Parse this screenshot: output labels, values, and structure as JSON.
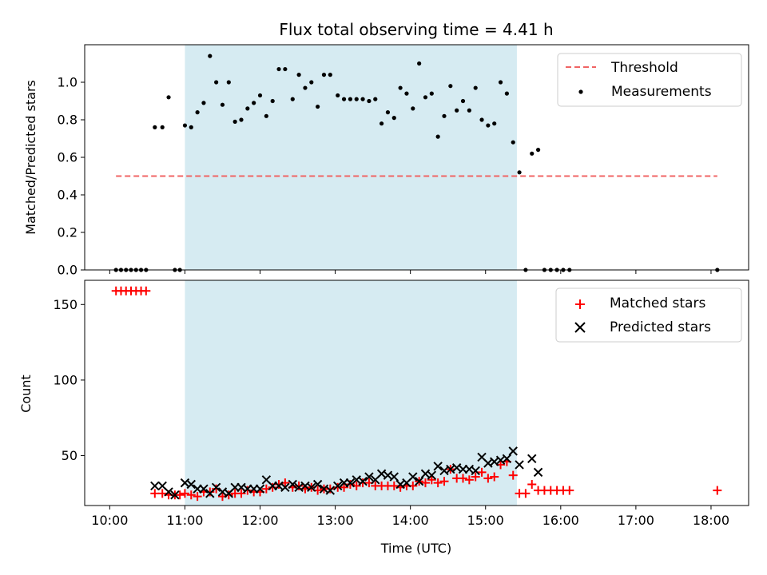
{
  "chart_data": [
    {
      "type": "scatter",
      "title": "Flux total observing time = 4.41 h",
      "ylabel": "Matched/Predicted stars",
      "xlabel": "",
      "ylim": [
        0,
        1.2
      ],
      "xlim": [
        "09:40",
        "18:30"
      ],
      "yticks": [
        "0.0",
        "0.2",
        "0.4",
        "0.6",
        "0.8",
        "1.0"
      ],
      "observing_window": [
        "11:00",
        "15:25"
      ],
      "window_color": "#add8e6",
      "legend_position": "upper right",
      "threshold": {
        "name": "Threshold",
        "value": 0.5,
        "x_range": [
          "10:05",
          "18:05"
        ],
        "color": "#f06464",
        "style": "dashed"
      },
      "series": [
        {
          "name": "Measurements",
          "color": "#000000",
          "marker": "dot",
          "points": [
            [
              "10:05",
              0.0
            ],
            [
              "10:09",
              0.0
            ],
            [
              "10:13",
              0.0
            ],
            [
              "10:17",
              0.0
            ],
            [
              "10:21",
              0.0
            ],
            [
              "10:25",
              0.0
            ],
            [
              "10:29",
              0.0
            ],
            [
              "10:36",
              0.76
            ],
            [
              "10:42",
              0.76
            ],
            [
              "10:47",
              0.92
            ],
            [
              "10:52",
              0.0
            ],
            [
              "10:56",
              0.0
            ],
            [
              "11:00",
              0.77
            ],
            [
              "11:05",
              0.76
            ],
            [
              "11:10",
              0.84
            ],
            [
              "11:15",
              0.89
            ],
            [
              "11:20",
              1.14
            ],
            [
              "11:25",
              1.0
            ],
            [
              "11:30",
              0.88
            ],
            [
              "11:35",
              1.0
            ],
            [
              "11:40",
              0.79
            ],
            [
              "11:45",
              0.8
            ],
            [
              "11:50",
              0.86
            ],
            [
              "11:55",
              0.89
            ],
            [
              "12:00",
              0.93
            ],
            [
              "12:05",
              0.82
            ],
            [
              "12:10",
              0.9
            ],
            [
              "12:15",
              1.07
            ],
            [
              "12:20",
              1.07
            ],
            [
              "12:26",
              0.91
            ],
            [
              "12:31",
              1.04
            ],
            [
              "12:36",
              0.97
            ],
            [
              "12:41",
              1.0
            ],
            [
              "12:46",
              0.87
            ],
            [
              "12:51",
              1.04
            ],
            [
              "12:56",
              1.04
            ],
            [
              "13:02",
              0.93
            ],
            [
              "13:07",
              0.91
            ],
            [
              "13:12",
              0.91
            ],
            [
              "13:17",
              0.91
            ],
            [
              "13:22",
              0.91
            ],
            [
              "13:27",
              0.9
            ],
            [
              "13:32",
              0.91
            ],
            [
              "13:37",
              0.78
            ],
            [
              "13:42",
              0.84
            ],
            [
              "13:47",
              0.81
            ],
            [
              "13:52",
              0.97
            ],
            [
              "13:57",
              0.94
            ],
            [
              "14:02",
              0.86
            ],
            [
              "14:07",
              1.1
            ],
            [
              "14:12",
              0.92
            ],
            [
              "14:17",
              0.94
            ],
            [
              "14:22",
              0.71
            ],
            [
              "14:27",
              0.82
            ],
            [
              "14:32",
              0.98
            ],
            [
              "14:37",
              0.85
            ],
            [
              "14:42",
              0.9
            ],
            [
              "14:47",
              0.85
            ],
            [
              "14:52",
              0.97
            ],
            [
              "14:57",
              0.8
            ],
            [
              "15:02",
              0.77
            ],
            [
              "15:07",
              0.78
            ],
            [
              "15:12",
              1.0
            ],
            [
              "15:17",
              0.94
            ],
            [
              "15:22",
              0.68
            ],
            [
              "15:27",
              0.52
            ],
            [
              "15:32",
              0.0
            ],
            [
              "15:37",
              0.62
            ],
            [
              "15:42",
              0.64
            ],
            [
              "15:47",
              0.0
            ],
            [
              "15:52",
              0.0
            ],
            [
              "15:57",
              0.0
            ],
            [
              "16:02",
              0.0
            ],
            [
              "16:07",
              0.0
            ],
            [
              "18:05",
              0.0
            ]
          ]
        }
      ]
    },
    {
      "type": "scatter",
      "title": "",
      "ylabel": "Count",
      "xlabel": "Time (UTC)",
      "ylim": [
        17,
        166
      ],
      "xlim": [
        "09:40",
        "18:30"
      ],
      "yticks": [
        "50",
        "100",
        "150"
      ],
      "xticks": [
        "10:00",
        "11:00",
        "12:00",
        "13:00",
        "14:00",
        "15:00",
        "16:00",
        "17:00",
        "18:00"
      ],
      "observing_window": [
        "11:00",
        "15:25"
      ],
      "window_color": "#add8e6",
      "legend_position": "upper right",
      "series": [
        {
          "name": "Matched stars",
          "color": "#ff0000",
          "marker": "plus",
          "points": [
            [
              "10:05",
              159
            ],
            [
              "10:09",
              159
            ],
            [
              "10:13",
              159
            ],
            [
              "10:17",
              159
            ],
            [
              "10:21",
              159
            ],
            [
              "10:25",
              159
            ],
            [
              "10:29",
              159
            ],
            [
              "10:36",
              25
            ],
            [
              "10:42",
              25
            ],
            [
              "10:47",
              24
            ],
            [
              "10:52",
              24
            ],
            [
              "10:56",
              24
            ],
            [
              "11:00",
              25
            ],
            [
              "11:05",
              24
            ],
            [
              "11:10",
              23
            ],
            [
              "11:15",
              26
            ],
            [
              "11:20",
              26
            ],
            [
              "11:25",
              28
            ],
            [
              "11:30",
              23
            ],
            [
              "11:35",
              24
            ],
            [
              "11:40",
              25
            ],
            [
              "11:45",
              25
            ],
            [
              "11:50",
              27
            ],
            [
              "11:55",
              26
            ],
            [
              "12:00",
              26
            ],
            [
              "12:05",
              28
            ],
            [
              "12:10",
              29
            ],
            [
              "12:15",
              31
            ],
            [
              "12:20",
              32
            ],
            [
              "12:26",
              29
            ],
            [
              "12:31",
              30
            ],
            [
              "12:36",
              28
            ],
            [
              "12:41",
              29
            ],
            [
              "12:46",
              27
            ],
            [
              "12:51",
              28
            ],
            [
              "12:56",
              28
            ],
            [
              "13:02",
              29
            ],
            [
              "13:07",
              29
            ],
            [
              "13:12",
              31
            ],
            [
              "13:17",
              30
            ],
            [
              "13:22",
              32
            ],
            [
              "13:27",
              32
            ],
            [
              "13:32",
              30
            ],
            [
              "13:37",
              30
            ],
            [
              "13:42",
              30
            ],
            [
              "13:47",
              30
            ],
            [
              "13:52",
              29
            ],
            [
              "13:57",
              30
            ],
            [
              "14:02",
              30
            ],
            [
              "14:07",
              33
            ],
            [
              "14:12",
              32
            ],
            [
              "14:17",
              34
            ],
            [
              "14:22",
              32
            ],
            [
              "14:27",
              33
            ],
            [
              "14:32",
              41
            ],
            [
              "14:37",
              35
            ],
            [
              "14:42",
              35
            ],
            [
              "14:47",
              34
            ],
            [
              "14:52",
              36
            ],
            [
              "14:57",
              39
            ],
            [
              "15:02",
              35
            ],
            [
              "15:07",
              36
            ],
            [
              "15:12",
              44
            ],
            [
              "15:17",
              46
            ],
            [
              "15:22",
              37
            ],
            [
              "15:27",
              25
            ],
            [
              "15:32",
              25
            ],
            [
              "15:37",
              31
            ],
            [
              "15:42",
              27
            ],
            [
              "15:47",
              27
            ],
            [
              "15:52",
              27
            ],
            [
              "15:57",
              27
            ],
            [
              "16:02",
              27
            ],
            [
              "16:07",
              27
            ],
            [
              "18:05",
              27
            ]
          ]
        },
        {
          "name": "Predicted stars",
          "color": "#000000",
          "marker": "x",
          "points": [
            [
              "10:36",
              30
            ],
            [
              "10:42",
              30
            ],
            [
              "10:47",
              26
            ],
            [
              "10:52",
              24
            ],
            [
              "11:00",
              32
            ],
            [
              "11:05",
              31
            ],
            [
              "11:10",
              28
            ],
            [
              "11:15",
              28
            ],
            [
              "11:20",
              25
            ],
            [
              "11:25",
              29
            ],
            [
              "11:30",
              26
            ],
            [
              "11:35",
              25
            ],
            [
              "11:40",
              29
            ],
            [
              "11:45",
              29
            ],
            [
              "11:50",
              28
            ],
            [
              "11:55",
              28
            ],
            [
              "12:00",
              28
            ],
            [
              "12:05",
              34
            ],
            [
              "12:10",
              30
            ],
            [
              "12:15",
              30
            ],
            [
              "12:20",
              29
            ],
            [
              "12:26",
              31
            ],
            [
              "12:31",
              29
            ],
            [
              "12:36",
              30
            ],
            [
              "12:41",
              29
            ],
            [
              "12:46",
              31
            ],
            [
              "12:51",
              28
            ],
            [
              "12:56",
              27
            ],
            [
              "13:02",
              30
            ],
            [
              "13:07",
              32
            ],
            [
              "13:12",
              32
            ],
            [
              "13:17",
              34
            ],
            [
              "13:22",
              33
            ],
            [
              "13:27",
              36
            ],
            [
              "13:32",
              34
            ],
            [
              "13:37",
              38
            ],
            [
              "13:42",
              37
            ],
            [
              "13:47",
              36
            ],
            [
              "13:52",
              31
            ],
            [
              "13:57",
              32
            ],
            [
              "14:02",
              36
            ],
            [
              "14:07",
              33
            ],
            [
              "14:12",
              38
            ],
            [
              "14:17",
              37
            ],
            [
              "14:22",
              43
            ],
            [
              "14:27",
              40
            ],
            [
              "14:32",
              41
            ],
            [
              "14:37",
              42
            ],
            [
              "14:42",
              41
            ],
            [
              "14:47",
              41
            ],
            [
              "14:52",
              40
            ],
            [
              "14:57",
              49
            ],
            [
              "15:02",
              45
            ],
            [
              "15:07",
              46
            ],
            [
              "15:12",
              47
            ],
            [
              "15:17",
              48
            ],
            [
              "15:22",
              53
            ],
            [
              "15:27",
              44
            ],
            [
              "15:37",
              48
            ],
            [
              "15:42",
              39
            ]
          ]
        }
      ]
    }
  ]
}
